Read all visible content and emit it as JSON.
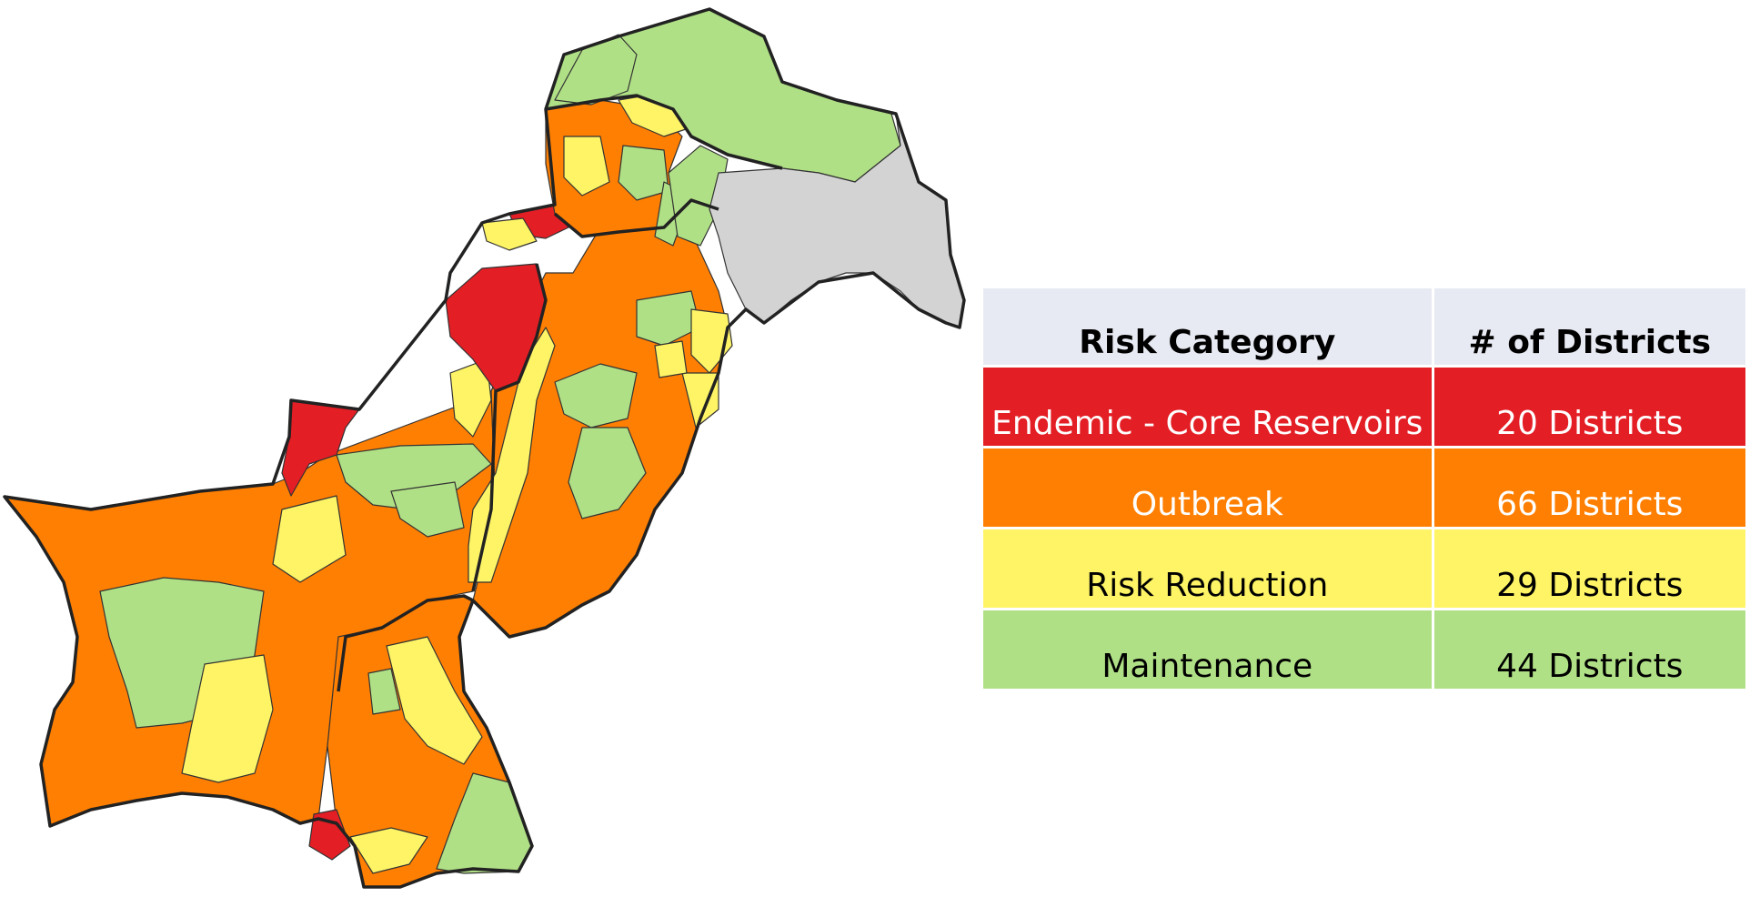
{
  "map": {
    "colors": {
      "endemic": "#e31e25",
      "outbreak": "#ff7f02",
      "risk_reduction": "#fef466",
      "maintenance": "#b0e086",
      "disputed": "#d3d3d3",
      "border": "#222222"
    }
  },
  "legend": {
    "header_bg": "#e8eaf3",
    "headers": [
      "Risk Category",
      "# of Districts"
    ],
    "rows": [
      {
        "category": "Endemic - Core Reservoirs",
        "districts": "20 Districts",
        "bg": "#e31e25",
        "text_color": "#ffffff"
      },
      {
        "category": "Outbreak",
        "districts": "66 Districts",
        "bg": "#ff7f02",
        "text_color": "#ffffff"
      },
      {
        "category": "Risk Reduction",
        "districts": "29 Districts",
        "bg": "#fef466",
        "text_color": "#000000"
      },
      {
        "category": "Maintenance",
        "districts": "44 Districts",
        "bg": "#b0e086",
        "text_color": "#000000"
      }
    ]
  }
}
